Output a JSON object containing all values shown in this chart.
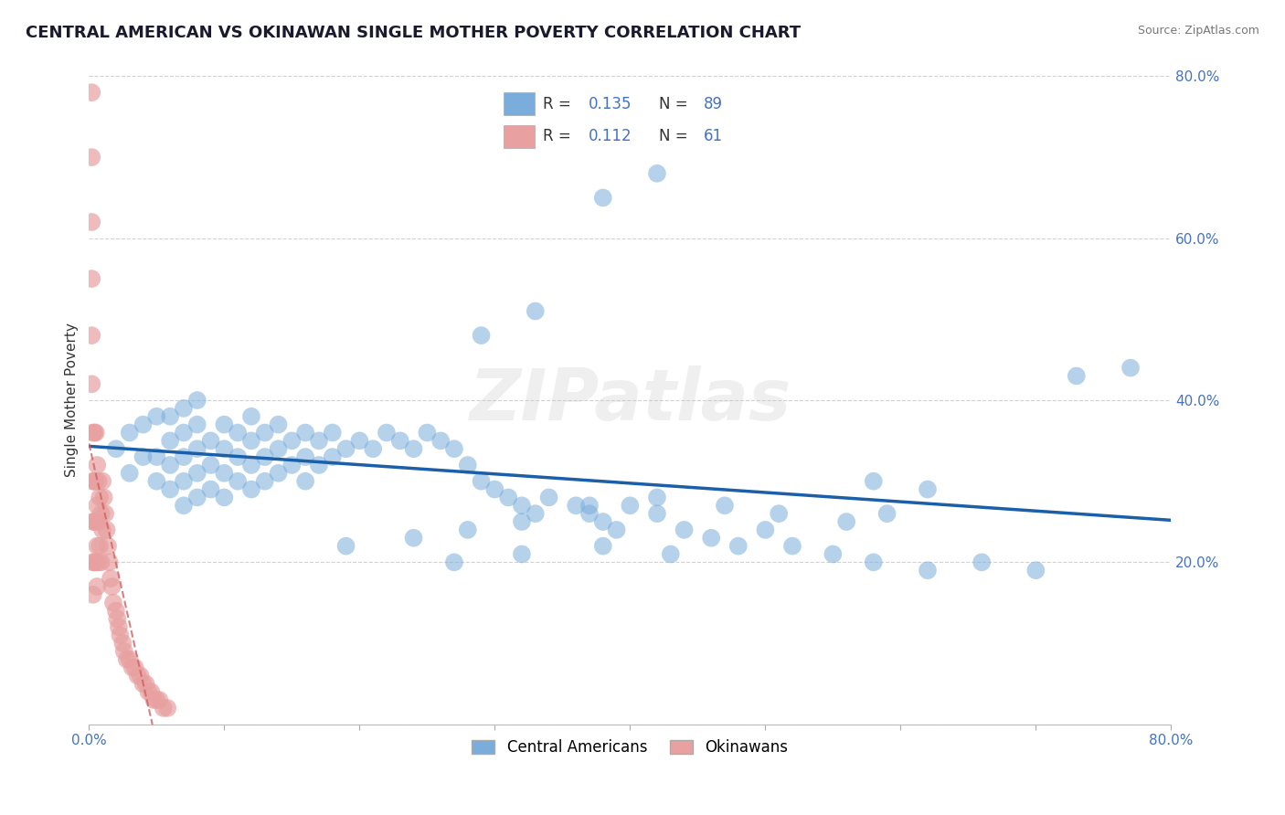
{
  "title": "CENTRAL AMERICAN VS OKINAWAN SINGLE MOTHER POVERTY CORRELATION CHART",
  "source": "Source: ZipAtlas.com",
  "ylabel": "Single Mother Poverty",
  "xlim": [
    0.0,
    0.8
  ],
  "ylim": [
    0.0,
    0.8
  ],
  "yticks": [
    0.0,
    0.2,
    0.4,
    0.6,
    0.8
  ],
  "yticklabels": [
    "",
    "20.0%",
    "40.0%",
    "60.0%",
    "80.0%"
  ],
  "blue_color": "#7aaddc",
  "pink_color": "#e8a0a0",
  "blue_line_color": "#1a5fa8",
  "pink_line_color": "#d06060",
  "legend_R_blue": "0.135",
  "legend_N_blue": "89",
  "legend_R_pink": "0.112",
  "legend_N_pink": "61",
  "legend_label_blue": "Central Americans",
  "legend_label_pink": "Okinawans",
  "watermark": "ZIPatlas",
  "background_color": "#ffffff",
  "grid_color": "#cccccc",
  "num_color": "#4472c4",
  "blue_x": [
    0.02,
    0.03,
    0.03,
    0.04,
    0.04,
    0.05,
    0.05,
    0.05,
    0.06,
    0.06,
    0.06,
    0.06,
    0.07,
    0.07,
    0.07,
    0.07,
    0.07,
    0.08,
    0.08,
    0.08,
    0.08,
    0.08,
    0.09,
    0.09,
    0.09,
    0.1,
    0.1,
    0.1,
    0.1,
    0.11,
    0.11,
    0.11,
    0.12,
    0.12,
    0.12,
    0.12,
    0.13,
    0.13,
    0.13,
    0.14,
    0.14,
    0.14,
    0.15,
    0.15,
    0.16,
    0.16,
    0.16,
    0.17,
    0.17,
    0.18,
    0.18,
    0.19,
    0.2,
    0.21,
    0.22,
    0.23,
    0.24,
    0.25,
    0.26,
    0.27,
    0.28,
    0.29,
    0.3,
    0.31,
    0.32,
    0.33,
    0.34,
    0.36,
    0.37,
    0.38,
    0.39,
    0.4,
    0.42,
    0.44,
    0.46,
    0.48,
    0.5,
    0.52,
    0.55,
    0.58,
    0.62,
    0.66,
    0.7,
    0.73,
    0.77,
    0.29,
    0.33,
    0.38,
    0.42
  ],
  "blue_y": [
    0.34,
    0.36,
    0.31,
    0.33,
    0.37,
    0.3,
    0.33,
    0.38,
    0.29,
    0.32,
    0.35,
    0.38,
    0.27,
    0.3,
    0.33,
    0.36,
    0.39,
    0.28,
    0.31,
    0.34,
    0.37,
    0.4,
    0.29,
    0.32,
    0.35,
    0.28,
    0.31,
    0.34,
    0.37,
    0.3,
    0.33,
    0.36,
    0.29,
    0.32,
    0.35,
    0.38,
    0.3,
    0.33,
    0.36,
    0.31,
    0.34,
    0.37,
    0.32,
    0.35,
    0.3,
    0.33,
    0.36,
    0.32,
    0.35,
    0.33,
    0.36,
    0.34,
    0.35,
    0.34,
    0.36,
    0.35,
    0.34,
    0.36,
    0.35,
    0.34,
    0.32,
    0.3,
    0.29,
    0.28,
    0.27,
    0.26,
    0.28,
    0.27,
    0.26,
    0.25,
    0.24,
    0.27,
    0.26,
    0.24,
    0.23,
    0.22,
    0.24,
    0.22,
    0.21,
    0.2,
    0.19,
    0.2,
    0.19,
    0.43,
    0.44,
    0.48,
    0.51,
    0.65,
    0.68
  ],
  "blue_x2": [
    0.19,
    0.24,
    0.28,
    0.32,
    0.37,
    0.42,
    0.47,
    0.51,
    0.56,
    0.59,
    0.27,
    0.32,
    0.38,
    0.43,
    0.58,
    0.62
  ],
  "blue_y2": [
    0.22,
    0.23,
    0.24,
    0.25,
    0.27,
    0.28,
    0.27,
    0.26,
    0.25,
    0.26,
    0.2,
    0.21,
    0.22,
    0.21,
    0.3,
    0.29
  ],
  "pink_x": [
    0.002,
    0.002,
    0.002,
    0.002,
    0.002,
    0.002,
    0.003,
    0.003,
    0.003,
    0.003,
    0.003,
    0.004,
    0.004,
    0.004,
    0.004,
    0.005,
    0.005,
    0.005,
    0.005,
    0.006,
    0.006,
    0.006,
    0.006,
    0.007,
    0.007,
    0.007,
    0.008,
    0.008,
    0.009,
    0.009,
    0.01,
    0.01,
    0.011,
    0.012,
    0.013,
    0.014,
    0.015,
    0.016,
    0.017,
    0.018,
    0.02,
    0.021,
    0.022,
    0.023,
    0.025,
    0.026,
    0.028,
    0.03,
    0.032,
    0.034,
    0.036,
    0.038,
    0.04,
    0.042,
    0.044,
    0.046,
    0.048,
    0.05,
    0.052,
    0.055,
    0.058
  ],
  "pink_y": [
    0.78,
    0.7,
    0.62,
    0.55,
    0.48,
    0.42,
    0.36,
    0.3,
    0.25,
    0.2,
    0.16,
    0.36,
    0.3,
    0.25,
    0.2,
    0.36,
    0.3,
    0.25,
    0.2,
    0.32,
    0.27,
    0.22,
    0.17,
    0.3,
    0.25,
    0.2,
    0.28,
    0.22,
    0.26,
    0.2,
    0.3,
    0.24,
    0.28,
    0.26,
    0.24,
    0.22,
    0.2,
    0.18,
    0.17,
    0.15,
    0.14,
    0.13,
    0.12,
    0.11,
    0.1,
    0.09,
    0.08,
    0.08,
    0.07,
    0.07,
    0.06,
    0.06,
    0.05,
    0.05,
    0.04,
    0.04,
    0.03,
    0.03,
    0.03,
    0.02,
    0.02
  ]
}
